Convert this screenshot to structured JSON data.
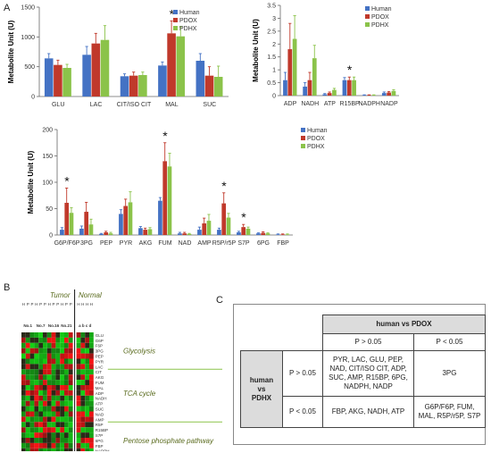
{
  "panel_labels": {
    "a": "A",
    "b": "B",
    "c": "C"
  },
  "colors": {
    "Human": "#4472c4",
    "PDOX": "#c0392b",
    "PDHX": "#8bc34a"
  },
  "chart_data": [
    {
      "type": "bar",
      "ylabel": "Metabolite Unit (U)",
      "ylim": [
        0,
        1500
      ],
      "yticks": [
        "0",
        "500",
        "1000",
        "1500"
      ],
      "categories": [
        "GLU",
        "LAC",
        "CIT/ISO CIT",
        "MAL",
        "SUC"
      ],
      "legend": [
        "Human",
        "PDOX",
        "PDHX"
      ],
      "legend_position": "top-right",
      "series": [
        {
          "name": "Human",
          "values": [
            640,
            700,
            340,
            520,
            600
          ],
          "errors": [
            80,
            140,
            40,
            60,
            120
          ]
        },
        {
          "name": "PDOX",
          "values": [
            530,
            890,
            350,
            1060,
            350
          ],
          "errors": [
            80,
            170,
            60,
            210,
            150
          ]
        },
        {
          "name": "PDHX",
          "values": [
            480,
            950,
            360,
            1010,
            330
          ],
          "errors": [
            60,
            240,
            50,
            160,
            180
          ]
        }
      ],
      "star_categories": [
        "MAL"
      ],
      "star_symbol": "*"
    },
    {
      "type": "bar",
      "ylabel": "Metabolite Unit (U)",
      "ylim": [
        0,
        3.5
      ],
      "yticks": [
        "0",
        "0.5",
        "1",
        "1.5",
        "2",
        "2.5",
        "3",
        "3.5"
      ],
      "categories": [
        "ADP",
        "NADH",
        "ATP",
        "R15BP",
        "NADPH",
        "NADP"
      ],
      "legend": [
        "Human",
        "PDOX",
        "PDHX"
      ],
      "legend_position": "top-right",
      "series": [
        {
          "name": "Human",
          "values": [
            0.6,
            0.35,
            0.05,
            0.6,
            0.02,
            0.1
          ],
          "errors": [
            0.3,
            0.15,
            0.03,
            0.1,
            0.01,
            0.04
          ]
        },
        {
          "name": "PDOX",
          "values": [
            1.8,
            0.6,
            0.1,
            0.6,
            0.02,
            0.12
          ],
          "errors": [
            1.0,
            0.3,
            0.04,
            0.12,
            0.01,
            0.04
          ]
        },
        {
          "name": "PDHX",
          "values": [
            2.2,
            1.45,
            0.22,
            0.6,
            0.02,
            0.18
          ],
          "errors": [
            0.9,
            0.5,
            0.06,
            0.12,
            0.01,
            0.05
          ]
        }
      ],
      "star_categories": [
        "R15BP"
      ],
      "star_symbol": "*"
    },
    {
      "type": "bar",
      "ylabel": "Metabolite Unit (U)",
      "ylim": [
        0,
        200
      ],
      "yticks": [
        "0",
        "50",
        "100",
        "150",
        "200"
      ],
      "categories": [
        "G6P/F6P",
        "3PG",
        "PEP",
        "PYR",
        "AKG",
        "FUM",
        "NAD",
        "AMP",
        "R5P/r5P",
        "S7P",
        "6PG",
        "FBP"
      ],
      "legend": [
        "Human",
        "PDOX",
        "PDHX"
      ],
      "legend_position": "top-right",
      "series": [
        {
          "name": "Human",
          "values": [
            10,
            12,
            2,
            40,
            13,
            65,
            3,
            10,
            10,
            5,
            3,
            1
          ],
          "errors": [
            4,
            5,
            1,
            8,
            3,
            6,
            2,
            5,
            3,
            2,
            1,
            1
          ]
        },
        {
          "name": "PDOX",
          "values": [
            61,
            44,
            5,
            55,
            10,
            140,
            3,
            22,
            60,
            15,
            4,
            1
          ],
          "errors": [
            28,
            18,
            2,
            13,
            3,
            35,
            2,
            10,
            20,
            5,
            2,
            1
          ]
        },
        {
          "name": "PDHX",
          "values": [
            42,
            20,
            3,
            62,
            11,
            130,
            2,
            27,
            33,
            12,
            3,
            1
          ],
          "errors": [
            10,
            10,
            2,
            20,
            3,
            25,
            1,
            12,
            8,
            3,
            1,
            1
          ]
        }
      ],
      "star_categories": [
        "G6P/F6P",
        "FUM",
        "R5P/r5P",
        "S7P"
      ],
      "star_symbol": "*"
    }
  ],
  "heatmap": {
    "group_tumor": "Tumor",
    "group_normal": "Normal",
    "sample_labels": [
      "No.1",
      "No.7",
      "No.16",
      "No.21",
      "a b c d"
    ],
    "column_headers": [
      "H",
      "P",
      "P",
      "H",
      "P",
      "P",
      "H",
      "P",
      "P",
      "H",
      "P",
      "P",
      "H",
      "H",
      "H",
      "H"
    ],
    "row_labels": [
      "GLU",
      "G6P",
      "F6P",
      "3PG",
      "PEP",
      "PYR",
      "LAC",
      "CIT",
      "AKG",
      "FUM",
      "MAL",
      "ADP",
      "NADH",
      "ATP",
      "SUC",
      "NAD",
      "AMP",
      "R5P",
      "R15BP",
      "S7P",
      "6PG",
      "FBP",
      "NADPH",
      "NADP"
    ],
    "pathways": [
      "Glycolysis",
      "TCA cycle",
      "Pentose phosphate pathway"
    ]
  },
  "table": {
    "header": "human vs PDOX",
    "col_labels": [
      "P > 0.05",
      "P < 0.05"
    ],
    "row_header": [
      "human",
      "vs",
      "PDHX"
    ],
    "row_labels": [
      "P > 0.05",
      "P < 0.05"
    ],
    "cells": [
      [
        "PYR, LAC, GLU, PEP, NAD, CIT/ISO CIT, ADP, SUC, AMP, R15BP, 6PG, NADPH, NADP",
        "3PG"
      ],
      [
        "FBP, AKG, NADH, ATP",
        "G6P/F6P, FUM, MAL, R5P/r5P, S7P"
      ]
    ]
  }
}
